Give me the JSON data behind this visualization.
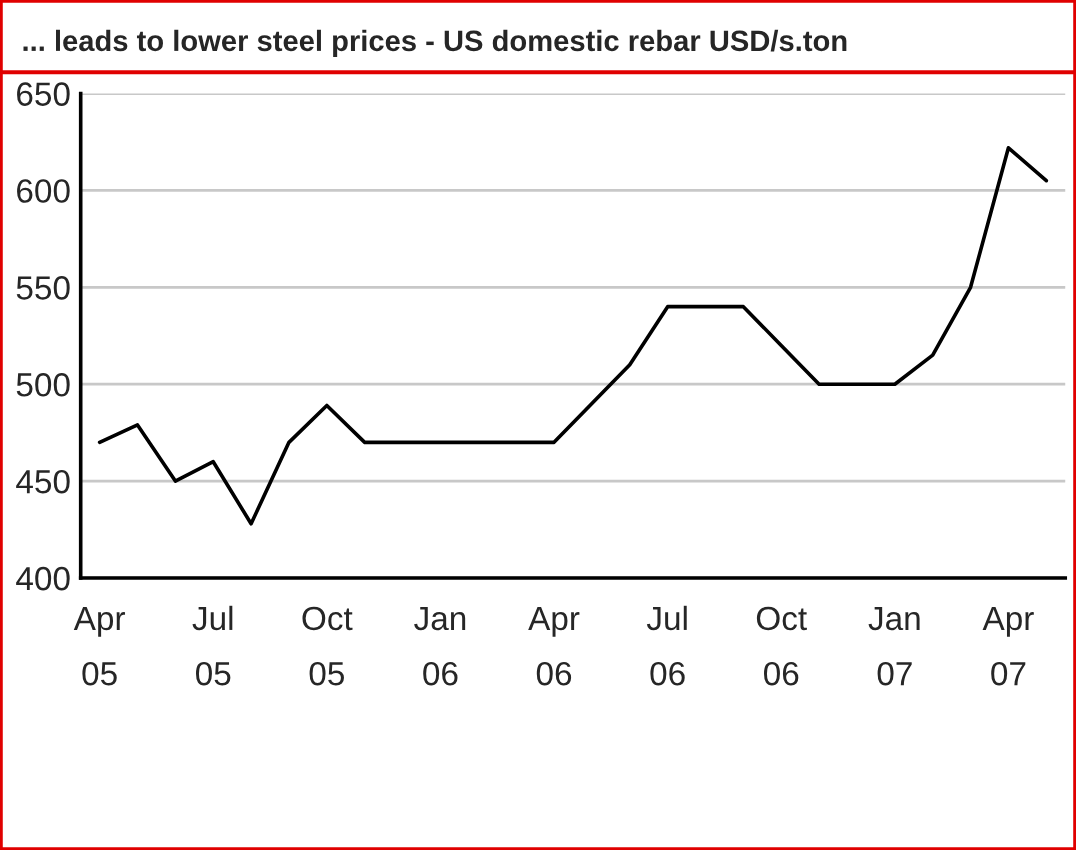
{
  "chart_data": {
    "type": "line",
    "title": "... leads to lower steel prices - US domestic rebar USD/s.ton",
    "categories": [
      "Apr\n05",
      null,
      null,
      "Jul\n05",
      null,
      null,
      "Oct\n05",
      null,
      null,
      "Jan\n06",
      null,
      null,
      "Apr\n06",
      null,
      null,
      "Jul\n06",
      null,
      null,
      "Oct\n06",
      null,
      null,
      "Jan\n07",
      null,
      null,
      "Apr\n07",
      null
    ],
    "series": [
      {
        "color": "#000000",
        "values": [
          470,
          479,
          450,
          460,
          428,
          470,
          489,
          470,
          470,
          470,
          470,
          470,
          470,
          490,
          510,
          540,
          540,
          540,
          520,
          500,
          500,
          500,
          515,
          550,
          622,
          605
        ]
      }
    ],
    "ylim": [
      400,
      650
    ],
    "yticks": [
      400,
      450,
      500,
      550,
      600,
      650
    ],
    "grid": "y",
    "legend": false,
    "marker": "none",
    "line_style": "solid"
  }
}
